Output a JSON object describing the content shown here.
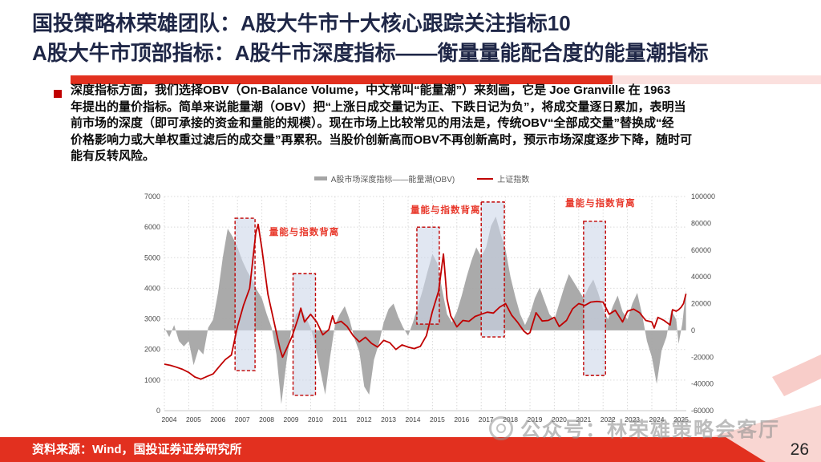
{
  "header": {
    "title_line1": "国投策略林荣雄团队：A股大牛市十大核心跟踪关注指标10",
    "title_line2": "A股大牛市顶部指标：A股牛市深度指标——衡量量能配合度的能量潮指标"
  },
  "body": {
    "bullet_text": "深度指标方面，我们选择OBV（On-Balance Volume，中文常叫“能量潮”）来刻画，它是 Joe Granville 在 1963\n年提出的量价指标。简单来说能量潮（OBV）把“上涨日成交量记为正、下跌日记为负”，将成交量逐日累加，表明当\n前市场的深度（即可承接的资金和量能的规模）。现在市场上比较常见的用法是，传统OBV“全部成交量”替换成“经\n价格影响力或大单权重过滤后的成交量”再累积。当股价创新高而OBV不再创新高时，预示市场深度逐步下降，随时可\n能有反转风险。"
  },
  "chart_data": {
    "type": "combo",
    "title": "",
    "legend": [
      {
        "label": "A股市场深度指标——能量潮(OBV)",
        "type": "area",
        "color": "#A5A5A5"
      },
      {
        "label": "上证指数",
        "type": "line",
        "color": "#C00000"
      }
    ],
    "x_ticks": [
      2004,
      2005,
      2006,
      2007,
      2008,
      2009,
      2010,
      2011,
      2012,
      2013,
      2014,
      2015,
      2016,
      2017,
      2018,
      2019,
      2020,
      2021,
      2022,
      2023,
      2024,
      2025
    ],
    "left_axis": {
      "min": 0,
      "max": 7000,
      "step": 1000
    },
    "right_axis": {
      "min": -60000,
      "max": 100000,
      "step": 20000
    },
    "grid": "dotted",
    "series": [
      {
        "name": "A股市场深度指标——能量潮(OBV)",
        "type": "area",
        "axis": "right",
        "color": "#A5A5A5",
        "points": [
          [
            2004.0,
            2000
          ],
          [
            2004.2,
            -5000
          ],
          [
            2004.4,
            4000
          ],
          [
            2004.6,
            -8000
          ],
          [
            2004.8,
            -12000
          ],
          [
            2005.0,
            -8000
          ],
          [
            2005.2,
            -26000
          ],
          [
            2005.4,
            -14000
          ],
          [
            2005.6,
            -18000
          ],
          [
            2005.8,
            2000
          ],
          [
            2006.0,
            8000
          ],
          [
            2006.2,
            28000
          ],
          [
            2006.4,
            55000
          ],
          [
            2006.6,
            76000
          ],
          [
            2006.8,
            70000
          ],
          [
            2007.0,
            62000
          ],
          [
            2007.2,
            52000
          ],
          [
            2007.4,
            44000
          ],
          [
            2007.6,
            38000
          ],
          [
            2007.8,
            30000
          ],
          [
            2008.0,
            24000
          ],
          [
            2008.2,
            12000
          ],
          [
            2008.4,
            2000
          ],
          [
            2008.6,
            -18000
          ],
          [
            2008.8,
            -55000
          ],
          [
            2009.0,
            -25000
          ],
          [
            2009.2,
            0
          ],
          [
            2009.4,
            12000
          ],
          [
            2009.6,
            16000
          ],
          [
            2009.8,
            10000
          ],
          [
            2010.0,
            2000
          ],
          [
            2010.2,
            -12000
          ],
          [
            2010.4,
            -30000
          ],
          [
            2010.6,
            -48000
          ],
          [
            2010.8,
            -20000
          ],
          [
            2011.0,
            4000
          ],
          [
            2011.2,
            12000
          ],
          [
            2011.4,
            18000
          ],
          [
            2011.6,
            8000
          ],
          [
            2011.8,
            -6000
          ],
          [
            2012.0,
            -16000
          ],
          [
            2012.2,
            -42000
          ],
          [
            2012.4,
            -48000
          ],
          [
            2012.6,
            -22000
          ],
          [
            2012.8,
            -10000
          ],
          [
            2013.0,
            6000
          ],
          [
            2013.2,
            16000
          ],
          [
            2013.4,
            20000
          ],
          [
            2013.6,
            10000
          ],
          [
            2013.8,
            2000
          ],
          [
            2014.0,
            -4000
          ],
          [
            2014.2,
            6000
          ],
          [
            2014.4,
            18000
          ],
          [
            2014.6,
            30000
          ],
          [
            2014.8,
            44000
          ],
          [
            2015.0,
            57000
          ],
          [
            2015.2,
            50000
          ],
          [
            2015.4,
            30000
          ],
          [
            2015.6,
            12000
          ],
          [
            2015.8,
            6000
          ],
          [
            2016.0,
            14000
          ],
          [
            2016.2,
            26000
          ],
          [
            2016.4,
            40000
          ],
          [
            2016.6,
            52000
          ],
          [
            2016.8,
            62000
          ],
          [
            2017.0,
            55000
          ],
          [
            2017.2,
            62000
          ],
          [
            2017.4,
            78000
          ],
          [
            2017.6,
            85000
          ],
          [
            2017.8,
            72000
          ],
          [
            2018.0,
            60000
          ],
          [
            2018.2,
            40000
          ],
          [
            2018.4,
            25000
          ],
          [
            2018.6,
            12000
          ],
          [
            2018.8,
            4000
          ],
          [
            2019.0,
            12000
          ],
          [
            2019.2,
            24000
          ],
          [
            2019.4,
            32000
          ],
          [
            2019.6,
            22000
          ],
          [
            2019.8,
            12000
          ],
          [
            2020.0,
            8000
          ],
          [
            2020.2,
            20000
          ],
          [
            2020.4,
            32000
          ],
          [
            2020.6,
            42000
          ],
          [
            2020.8,
            36000
          ],
          [
            2021.0,
            30000
          ],
          [
            2021.2,
            24000
          ],
          [
            2021.4,
            32000
          ],
          [
            2021.6,
            38000
          ],
          [
            2021.8,
            28000
          ],
          [
            2022.0,
            16000
          ],
          [
            2022.2,
            8000
          ],
          [
            2022.4,
            18000
          ],
          [
            2022.6,
            26000
          ],
          [
            2022.8,
            14000
          ],
          [
            2023.0,
            8000
          ],
          [
            2023.2,
            20000
          ],
          [
            2023.4,
            28000
          ],
          [
            2023.6,
            12000
          ],
          [
            2023.8,
            -8000
          ],
          [
            2024.0,
            -20000
          ],
          [
            2024.2,
            -40000
          ],
          [
            2024.4,
            -15000
          ],
          [
            2024.6,
            -5000
          ],
          [
            2024.8,
            15000
          ],
          [
            2025.0,
            8000
          ],
          [
            2025.1,
            -10000
          ],
          [
            2025.25,
            5000
          ],
          [
            2025.4,
            30000
          ]
        ]
      },
      {
        "name": "上证指数",
        "type": "line",
        "axis": "left",
        "color": "#C00000",
        "points": [
          [
            2004.0,
            1520
          ],
          [
            2004.25,
            1480
          ],
          [
            2004.5,
            1420
          ],
          [
            2004.75,
            1350
          ],
          [
            2005.0,
            1250
          ],
          [
            2005.25,
            1100
          ],
          [
            2005.5,
            1030
          ],
          [
            2005.75,
            1120
          ],
          [
            2006.0,
            1200
          ],
          [
            2006.25,
            1440
          ],
          [
            2006.5,
            1670
          ],
          [
            2006.75,
            1820
          ],
          [
            2007.0,
            2750
          ],
          [
            2007.25,
            3450
          ],
          [
            2007.5,
            4000
          ],
          [
            2007.75,
            5800
          ],
          [
            2007.85,
            6090
          ],
          [
            2008.0,
            5300
          ],
          [
            2008.25,
            3800
          ],
          [
            2008.5,
            2900
          ],
          [
            2008.75,
            2000
          ],
          [
            2008.85,
            1750
          ],
          [
            2009.0,
            2000
          ],
          [
            2009.25,
            2450
          ],
          [
            2009.5,
            3050
          ],
          [
            2009.6,
            3350
          ],
          [
            2009.75,
            2900
          ],
          [
            2010.0,
            3150
          ],
          [
            2010.25,
            2900
          ],
          [
            2010.5,
            2480
          ],
          [
            2010.75,
            2650
          ],
          [
            2010.9,
            3100
          ],
          [
            2011.0,
            2850
          ],
          [
            2011.25,
            2920
          ],
          [
            2011.5,
            2750
          ],
          [
            2011.75,
            2450
          ],
          [
            2012.0,
            2250
          ],
          [
            2012.25,
            2400
          ],
          [
            2012.5,
            2200
          ],
          [
            2012.75,
            2080
          ],
          [
            2013.0,
            2300
          ],
          [
            2013.25,
            2220
          ],
          [
            2013.5,
            2000
          ],
          [
            2013.75,
            2150
          ],
          [
            2014.0,
            2080
          ],
          [
            2014.25,
            2030
          ],
          [
            2014.5,
            2100
          ],
          [
            2014.75,
            2450
          ],
          [
            2015.0,
            3250
          ],
          [
            2015.25,
            3900
          ],
          [
            2015.45,
            5120
          ],
          [
            2015.6,
            3650
          ],
          [
            2015.75,
            3100
          ],
          [
            2016.0,
            2740
          ],
          [
            2016.25,
            2950
          ],
          [
            2016.5,
            2920
          ],
          [
            2016.75,
            3080
          ],
          [
            2017.0,
            3150
          ],
          [
            2017.25,
            3220
          ],
          [
            2017.5,
            3190
          ],
          [
            2017.75,
            3380
          ],
          [
            2018.0,
            3500
          ],
          [
            2018.25,
            3120
          ],
          [
            2018.5,
            2880
          ],
          [
            2018.75,
            2600
          ],
          [
            2018.9,
            2500
          ],
          [
            2019.0,
            2550
          ],
          [
            2019.25,
            3200
          ],
          [
            2019.5,
            2930
          ],
          [
            2019.75,
            2950
          ],
          [
            2020.0,
            3050
          ],
          [
            2020.2,
            2750
          ],
          [
            2020.5,
            2950
          ],
          [
            2020.75,
            3330
          ],
          [
            2021.0,
            3500
          ],
          [
            2021.25,
            3440
          ],
          [
            2021.5,
            3550
          ],
          [
            2021.75,
            3570
          ],
          [
            2022.0,
            3550
          ],
          [
            2022.25,
            3150
          ],
          [
            2022.5,
            3280
          ],
          [
            2022.8,
            2900
          ],
          [
            2023.0,
            3250
          ],
          [
            2023.25,
            3320
          ],
          [
            2023.5,
            3200
          ],
          [
            2023.75,
            2950
          ],
          [
            2024.0,
            2900
          ],
          [
            2024.1,
            2700
          ],
          [
            2024.25,
            3050
          ],
          [
            2024.5,
            2950
          ],
          [
            2024.75,
            2800
          ],
          [
            2024.85,
            3300
          ],
          [
            2025.0,
            3250
          ],
          [
            2025.1,
            3300
          ],
          [
            2025.2,
            3380
          ],
          [
            2025.3,
            3500
          ],
          [
            2025.4,
            3820
          ]
        ]
      }
    ],
    "highlight_boxes": [
      {
        "x0": 2006.9,
        "x1": 2007.72,
        "y0": 1310,
        "y1": 6290
      },
      {
        "x0": 2009.28,
        "x1": 2010.2,
        "y0": 500,
        "y1": 4480
      },
      {
        "x0": 2014.36,
        "x1": 2015.28,
        "y0": 2830,
        "y1": 6000
      },
      {
        "x0": 2017.0,
        "x1": 2017.95,
        "y0": 2410,
        "y1": 6820
      },
      {
        "x0": 2021.2,
        "x1": 2022.1,
        "y0": 1150,
        "y1": 6190
      }
    ],
    "annotations": [
      {
        "text": "量能与指数背离",
        "x": 2008.3,
        "y": 5740
      },
      {
        "text": "量能与指数背离",
        "x": 2014.1,
        "y": 6460
      },
      {
        "text": "量能与指数背离",
        "x": 2020.45,
        "y": 6690
      }
    ]
  },
  "watermark": {
    "text": "公众号：林荣雄策略会客厅"
  },
  "footer": {
    "source": "资料来源：Wind，国投证券证券研究所",
    "page_number": "26"
  },
  "colors": {
    "title_navy": "#1F2747",
    "accent_red": "#E2301F",
    "line_red": "#C00000",
    "area_gray": "#A5A5A5",
    "box_fill": "#CDD7EA",
    "box_border": "#C00000",
    "annotation_red": "#E8392C",
    "axis_text": "#4A4A4A",
    "grid": "#D9D9D9"
  }
}
